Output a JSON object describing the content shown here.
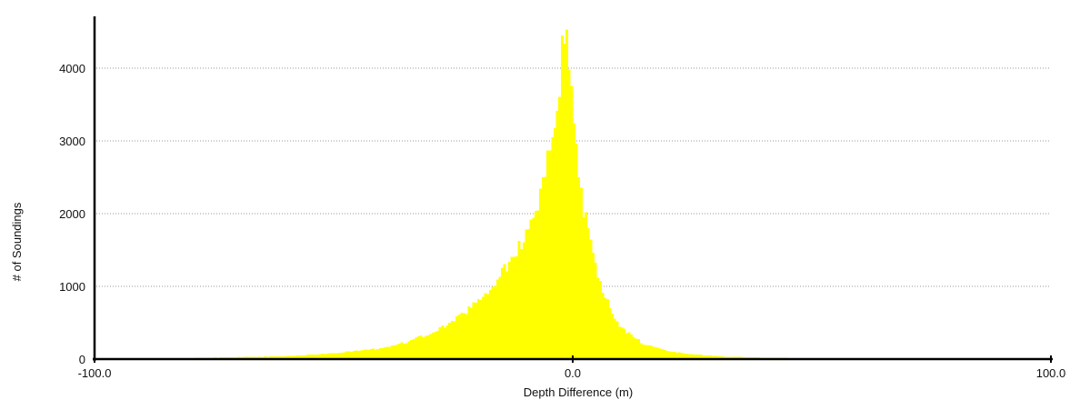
{
  "chart_data": {
    "type": "bar",
    "title": "",
    "xlabel": "Depth Difference (m)",
    "ylabel": "# of Soundings",
    "xlim": [
      -100.0,
      100.0
    ],
    "ylim": [
      0,
      4700
    ],
    "x_tick_labels": [
      "-100.0",
      "0.0",
      "100.0"
    ],
    "y_tick_labels": [
      "0",
      "1000",
      "2000",
      "3000",
      "4000"
    ],
    "grid": "horizontal dotted",
    "bar_color": "#ffff00",
    "bin_width": 0.5,
    "peak": {
      "x": -1.5,
      "y": 4650
    },
    "profile": {
      "x": [
        -100,
        -80,
        -60,
        -50,
        -40,
        -35,
        -30,
        -25,
        -20,
        -15,
        -10,
        -8,
        -6,
        -5,
        -4,
        -3,
        -2.5,
        -2,
        -1.5,
        -1,
        -0.5,
        0,
        0.5,
        1,
        2,
        3,
        4,
        5,
        6,
        8,
        10,
        15,
        20,
        25,
        30,
        40,
        50,
        60,
        80,
        100
      ],
      "y": [
        5,
        15,
        40,
        80,
        150,
        230,
        350,
        520,
        780,
        1150,
        1700,
        2000,
        2450,
        2800,
        3200,
        3700,
        4050,
        4400,
        4650,
        4450,
        4000,
        3500,
        3000,
        2600,
        2150,
        1800,
        1500,
        1250,
        1000,
        650,
        430,
        200,
        110,
        65,
        40,
        20,
        10,
        5,
        2,
        0
      ]
    }
  }
}
